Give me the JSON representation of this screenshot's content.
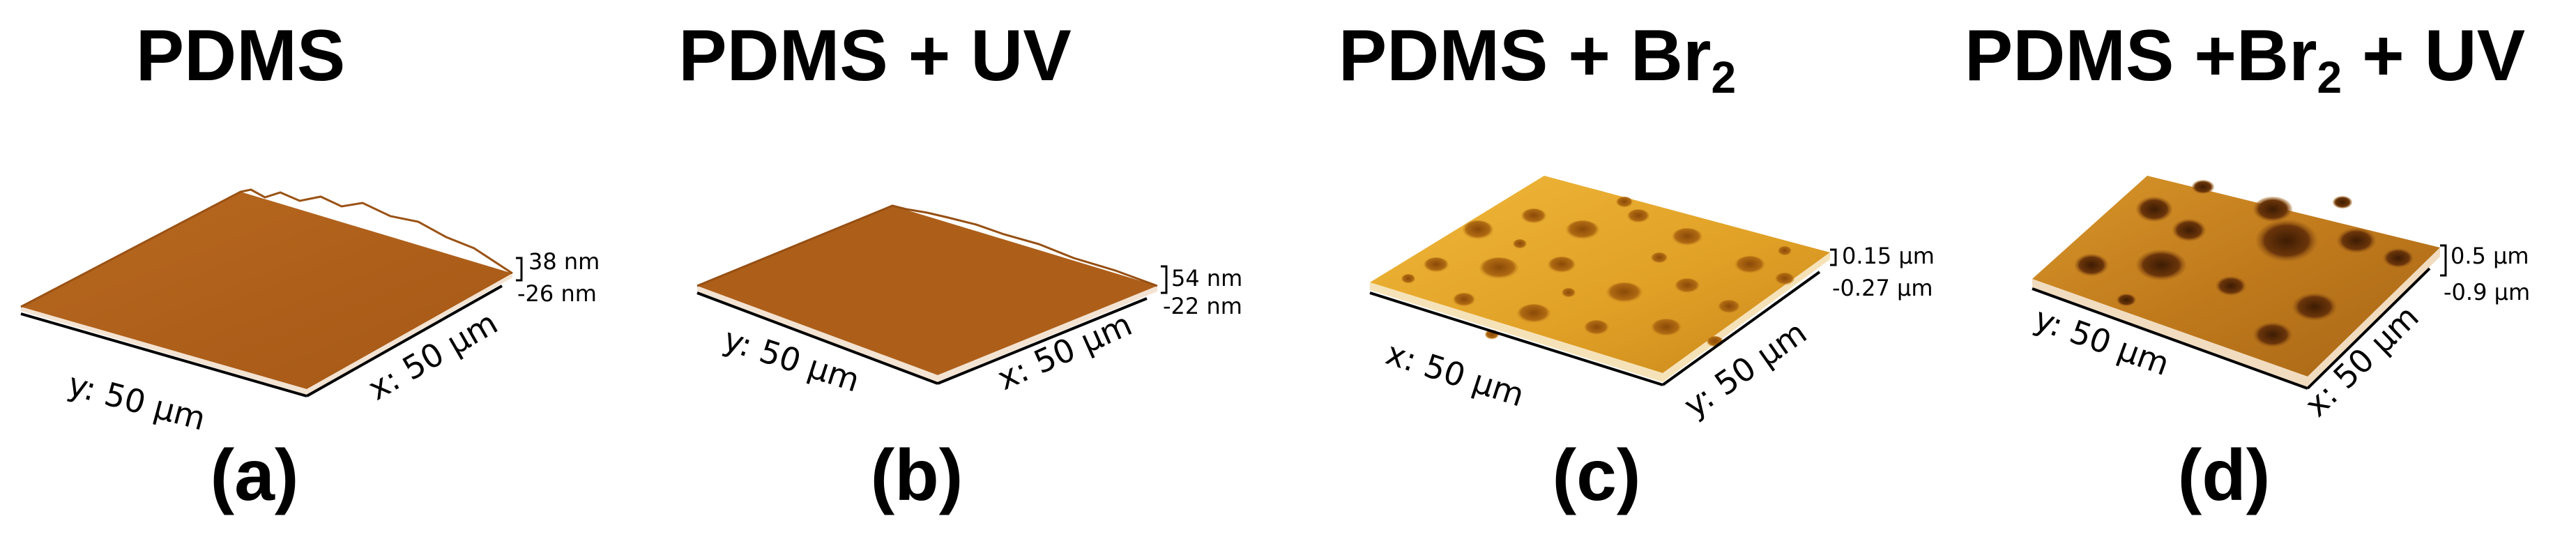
{
  "panels": [
    {
      "id": "a",
      "title": "PDMS",
      "letter": "(a)",
      "z_max": "38 nm",
      "z_min": "-26 nm",
      "axis_front": "y: 50 μm",
      "axis_side": "x: 50 μm",
      "texture": "smooth",
      "colors": {
        "top": "#b0621c",
        "edge": "#ffffff"
      }
    },
    {
      "id": "b",
      "title": "PDMS + UV",
      "letter": "(b)",
      "z_max": "54 nm",
      "z_min": "-22 nm",
      "axis_front": "y: 50 μm",
      "axis_side": "x: 50 μm",
      "texture": "smooth",
      "colors": {
        "top": "#ad5f1a",
        "edge": "#ffffff"
      }
    },
    {
      "id": "c",
      "title": "PDMS + Br",
      "title_sub": "2",
      "letter": "(c)",
      "z_max": "0.15 μm",
      "z_min": "-0.27 μm",
      "axis_front": "x: 50 μm",
      "axis_side": "y: 50 μm",
      "texture": "porous",
      "colors": {
        "top": "#e6a82a",
        "pore": "#a5600e",
        "edge": "#ffffff"
      }
    },
    {
      "id": "d",
      "title": "PDMS +Br",
      "title_sub": "2",
      "title_tail": " + UV",
      "letter": "(d)",
      "z_max": "0.5 μm",
      "z_min": "-0.9 μm",
      "axis_front": "y: 50 μm",
      "axis_side": "x: 50 μm",
      "texture": "craters",
      "colors": {
        "top": "#c8821e",
        "pore": "#5e2f08",
        "edge": "#ffffff"
      }
    }
  ]
}
